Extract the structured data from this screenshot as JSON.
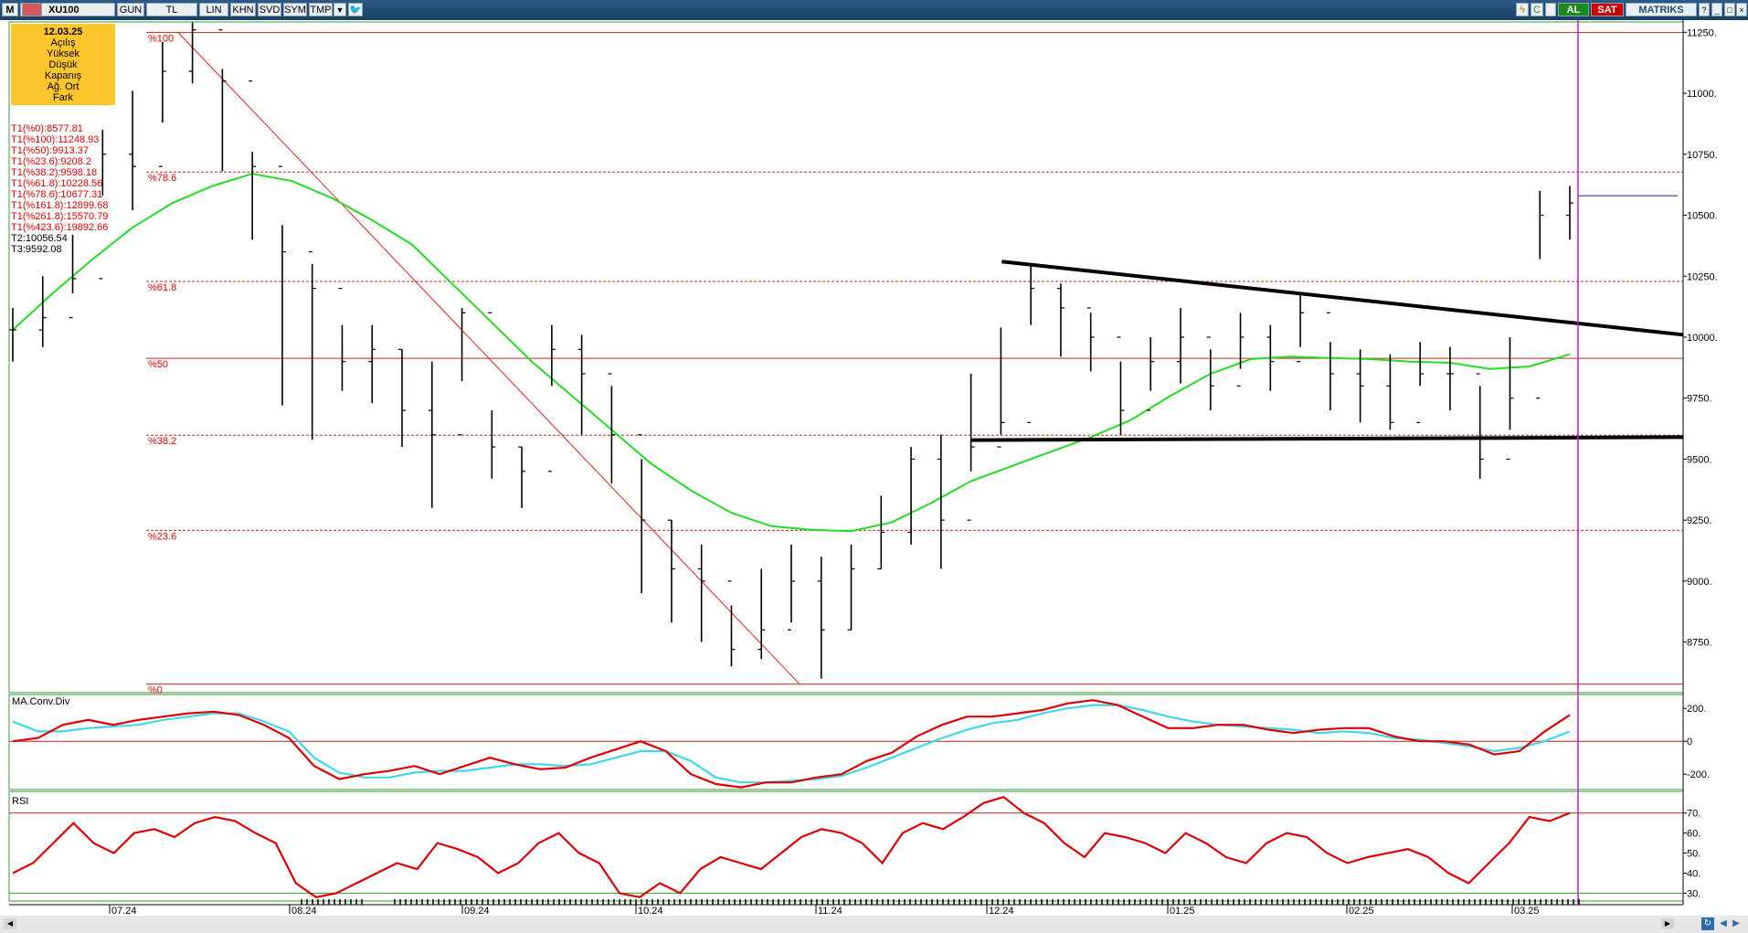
{
  "toolbar": {
    "m_label": "M",
    "symbol": "XU100",
    "buttons": [
      "GUN",
      "TL",
      "LIN",
      "KHN",
      "SVD",
      "SYM",
      "TMP"
    ],
    "al_label": "AL",
    "sat_label": "SAT",
    "brand": "MATRIKS",
    "colors": {
      "bar": "#1f4a73",
      "al": "#1a8a1a",
      "sat": "#cc0000"
    }
  },
  "info_box": {
    "date": "12.03.25",
    "rows": [
      "Açılış",
      "Yüksek",
      "Düşük",
      "Kapanış",
      "Ağ. Ort",
      "Fark"
    ]
  },
  "fib_texts": [
    {
      "text": "T1(%0):8577.81",
      "color": "#e00000"
    },
    {
      "text": "T1(%100):11248.93",
      "color": "#e00000"
    },
    {
      "text": "T1(%50):9913.37",
      "color": "#e00000"
    },
    {
      "text": "T1(%23.6):9208.2",
      "color": "#e00000"
    },
    {
      "text": "T1(%38.2):9598.18",
      "color": "#e00000"
    },
    {
      "text": "T1(%61.8):10228.56",
      "color": "#e00000"
    },
    {
      "text": "T1(%78.6):10677.31",
      "color": "#e00000"
    },
    {
      "text": "T1(%161.8):12899.68",
      "color": "#e00000"
    },
    {
      "text": "T1(%261.8):15570.79",
      "color": "#e00000"
    },
    {
      "text": "T1(%423.6):19892.66",
      "color": "#e00000"
    },
    {
      "text": "T2:10056.54",
      "color": "#000000"
    },
    {
      "text": "T3:9592.08",
      "color": "#000000"
    }
  ],
  "chart_data": [
    {
      "type": "bar",
      "series_name": "XU100",
      "ylim": [
        8580,
        11270
      ],
      "y_ticks": [
        8750,
        9000,
        9250,
        9500,
        9750,
        10000,
        10250,
        10500,
        10750,
        11000,
        11250
      ],
      "x_tick_labels": [
        "07.24",
        "08.24",
        "09.24",
        "10.24",
        "11.24",
        "12.24",
        "01.25",
        "02.25",
        "03.25"
      ],
      "fib_levels": [
        {
          "label": "%100",
          "value": 11248.93,
          "style": "solid"
        },
        {
          "label": "%78.6",
          "value": 10677.31,
          "style": "dashed"
        },
        {
          "label": "%61.8",
          "value": 10228.56,
          "style": "dashed"
        },
        {
          "label": "%50",
          "value": 9913.37,
          "style": "solid"
        },
        {
          "label": "%38.2",
          "value": 9598.18,
          "style": "dashed"
        },
        {
          "label": "%23.6",
          "value": 9208.2,
          "style": "dashed"
        },
        {
          "label": "%0",
          "value": 8577.81,
          "style": "solid"
        }
      ],
      "close": [
        10030,
        10080,
        10240,
        10750,
        10700,
        11090,
        11260,
        11050,
        10700,
        10350,
        10200,
        9900,
        9950,
        9700,
        9600,
        10100,
        9550,
        9450,
        9950,
        9850,
        9600,
        9250,
        9050,
        9000,
        8720,
        8800,
        9000,
        8800,
        9050,
        9200,
        9500,
        9250,
        9550,
        9650,
        10200,
        10120,
        10000,
        9700,
        9900,
        10000,
        9800,
        10000,
        9900,
        10100,
        9850,
        9800,
        9650,
        9850,
        9850,
        9500,
        9750,
        10500,
        10550
      ],
      "high": [
        10120,
        10250,
        10420,
        10850,
        11010,
        11210,
        11290,
        11100,
        10760,
        10460,
        10300,
        10050,
        10050,
        9950,
        9900,
        10120,
        9700,
        9550,
        10050,
        10010,
        9800,
        9500,
        9250,
        9150,
        8900,
        9050,
        9150,
        9100,
        9150,
        9350,
        9550,
        9600,
        9850,
        10040,
        10300,
        10220,
        10100,
        9900,
        10000,
        10120,
        9950,
        10100,
        10050,
        10180,
        9980,
        9950,
        9930,
        9980,
        9960,
        9800,
        10000,
        10600,
        10620
      ],
      "low": [
        9900,
        9960,
        10180,
        10580,
        10520,
        10880,
        11040,
        10680,
        10400,
        9720,
        9580,
        9780,
        9730,
        9550,
        9300,
        9820,
        9420,
        9300,
        9800,
        9600,
        9400,
        8950,
        8830,
        8750,
        8650,
        8680,
        8830,
        8600,
        8800,
        9050,
        9150,
        9050,
        9450,
        9600,
        10050,
        9920,
        9860,
        9600,
        9780,
        9810,
        9700,
        9870,
        9780,
        9960,
        9700,
        9650,
        9620,
        9800,
        9700,
        9420,
        9620,
        10320,
        10400
      ],
      "ma_line": [
        10030,
        10180,
        10320,
        10450,
        10550,
        10620,
        10670,
        10640,
        10570,
        10480,
        10380,
        10220,
        10060,
        9900,
        9760,
        9620,
        9480,
        9370,
        9280,
        9225,
        9210,
        9205,
        9240,
        9320,
        9410,
        9470,
        9530,
        9590,
        9660,
        9760,
        9850,
        9910,
        9920,
        9915,
        9910,
        9900,
        9895,
        9870,
        9880,
        9930
      ],
      "resistance_line": {
        "x": [
          0.593,
          1.0
        ],
        "y": [
          10310,
          10010
        ]
      },
      "support_line": {
        "x": [
          0.575,
          1.0
        ],
        "y": [
          9578,
          9590
        ]
      },
      "horizontal_ref": 10580
    },
    {
      "type": "line",
      "title": "MA.Conv.Div",
      "ylim": [
        -260,
        240
      ],
      "y_ticks": [
        -200,
        0,
        200
      ],
      "series": [
        {
          "color": "#e00000",
          "values": [
            0,
            20,
            100,
            130,
            100,
            130,
            150,
            170,
            180,
            160,
            100,
            20,
            -150,
            -230,
            -200,
            -180,
            -150,
            -200,
            -150,
            -100,
            -140,
            -170,
            -160,
            -100,
            -50,
            0,
            -60,
            -200,
            -260,
            -280,
            -250,
            -250,
            -220,
            -200,
            -120,
            -70,
            30,
            100,
            150,
            150,
            170,
            190,
            230,
            250,
            220,
            150,
            80,
            80,
            100,
            100,
            70,
            50,
            70,
            80,
            80,
            30,
            0,
            0,
            -20,
            -80,
            -60,
            60,
            160
          ]
        },
        {
          "color": "#40d8e8",
          "values": [
            120,
            60,
            60,
            80,
            90,
            100,
            130,
            150,
            170,
            170,
            120,
            60,
            -100,
            -190,
            -220,
            -220,
            -190,
            -180,
            -180,
            -160,
            -140,
            -140,
            -150,
            -140,
            -100,
            -60,
            -60,
            -120,
            -220,
            -250,
            -250,
            -240,
            -230,
            -210,
            -160,
            -100,
            -40,
            20,
            70,
            110,
            130,
            170,
            200,
            220,
            220,
            190,
            150,
            120,
            100,
            90,
            80,
            70,
            50,
            60,
            50,
            20,
            10,
            -10,
            -30,
            -60,
            -40,
            0,
            60
          ]
        }
      ]
    },
    {
      "type": "line",
      "title": "RSI",
      "ylim": [
        27,
        79
      ],
      "y_ticks": [
        30,
        40,
        50,
        60,
        70
      ],
      "reference_lines": [
        70,
        30
      ],
      "series": [
        {
          "color": "#e00000",
          "values": [
            40,
            45,
            55,
            65,
            55,
            50,
            60,
            62,
            58,
            65,
            68,
            66,
            60,
            55,
            35,
            28,
            30,
            35,
            40,
            45,
            42,
            55,
            52,
            48,
            40,
            45,
            55,
            60,
            50,
            45,
            30,
            28,
            35,
            30,
            42,
            48,
            45,
            42,
            50,
            58,
            62,
            60,
            55,
            45,
            60,
            65,
            62,
            68,
            75,
            78,
            70,
            65,
            55,
            48,
            60,
            58,
            55,
            50,
            60,
            55,
            48,
            45,
            55,
            60,
            58,
            50,
            45,
            48,
            50,
            52,
            48,
            40,
            35,
            45,
            55,
            68,
            66,
            70
          ]
        }
      ]
    }
  ]
}
